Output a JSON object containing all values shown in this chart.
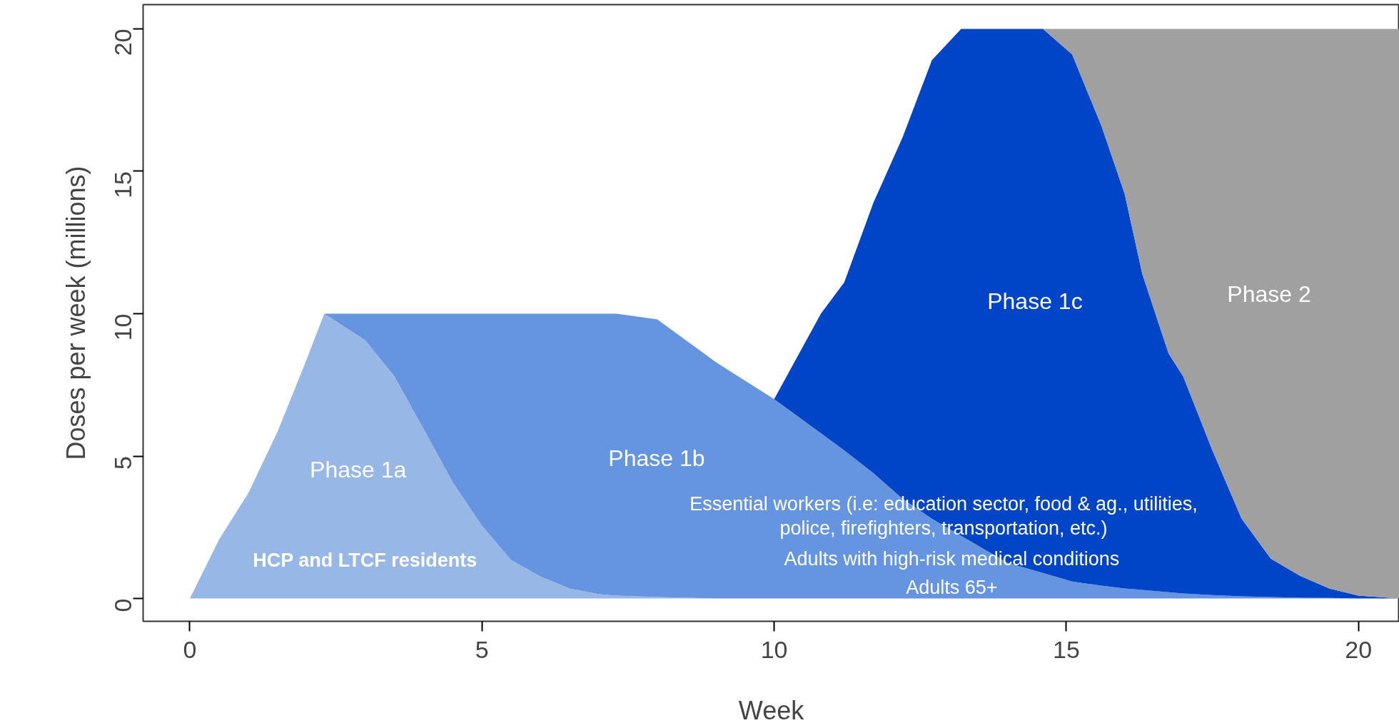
{
  "chart_data": {
    "type": "area",
    "stacked": true,
    "xlabel": "Week",
    "ylabel": "Doses per week (millions)",
    "x": [
      0,
      0.5,
      1,
      1.5,
      2,
      2.3,
      3,
      3.5,
      4,
      4.5,
      5,
      5.5,
      6,
      6.5,
      7,
      7.3,
      8,
      9,
      10,
      10.8,
      11.2,
      11.7,
      12.2,
      12.7,
      13.2,
      14,
      14.6,
      15.1,
      15.6,
      16,
      16.3,
      16.75,
      17,
      17.5,
      18,
      18.5,
      19,
      19.5,
      20,
      20.7
    ],
    "series": [
      {
        "name": "Phase 1a",
        "color": "#97b7e6",
        "values": [
          0,
          2.07,
          3.7,
          5.85,
          8.4,
          10,
          9.07,
          7.8,
          5.95,
          4.08,
          2.55,
          1.35,
          0.77,
          0.35,
          0.15,
          0.1,
          0.05,
          0,
          null,
          null,
          null,
          null,
          null,
          null,
          null,
          null,
          null,
          null,
          null,
          null,
          null,
          null,
          null,
          null,
          null,
          null,
          null,
          null,
          null,
          null
        ]
      },
      {
        "name": "Phase 1b",
        "color": "#6595e0",
        "values": [
          null,
          null,
          null,
          null,
          null,
          0,
          0.93,
          2.2,
          4.05,
          5.92,
          7.45,
          8.65,
          9.23,
          9.65,
          9.85,
          9.9,
          9.75,
          8.3,
          7.0,
          5.8,
          5.2,
          4.4,
          3.5,
          2.8,
          2.2,
          1.25,
          0.9,
          0.6,
          0.45,
          0.35,
          0.3,
          0.22,
          0.18,
          0.12,
          0.08,
          0.05,
          0.03,
          0.02,
          0,
          null
        ]
      },
      {
        "name": "Phase 1c",
        "color": "#0044c8",
        "values": [
          null,
          null,
          null,
          null,
          null,
          null,
          null,
          null,
          null,
          null,
          null,
          null,
          null,
          null,
          null,
          null,
          null,
          null,
          0,
          4.2,
          5.9,
          9.5,
          12.7,
          16.1,
          17.8,
          18.75,
          19.1,
          18.5,
          16.15,
          13.85,
          11.1,
          8.38,
          7.62,
          5.08,
          2.72,
          1.35,
          0.77,
          0.33,
          0.1,
          0
        ]
      },
      {
        "name": "Phase 2",
        "color": "#a0a0a0",
        "values": [
          null,
          null,
          null,
          null,
          null,
          null,
          null,
          null,
          null,
          null,
          null,
          null,
          null,
          null,
          null,
          null,
          null,
          null,
          null,
          null,
          null,
          null,
          null,
          null,
          null,
          null,
          0,
          0.9,
          3.4,
          5.8,
          8.6,
          11.4,
          12.2,
          14.8,
          17.2,
          18.6,
          19.2,
          19.65,
          19.9,
          20
        ]
      }
    ],
    "xlim": [
      -0.8,
      20.7
    ],
    "ylim": [
      -0.8,
      20.85
    ],
    "xticks": [
      0,
      5,
      10,
      15,
      20
    ],
    "yticks": [
      0,
      5,
      10,
      15,
      20
    ],
    "grid": false,
    "annotations": [
      "HCP and LTCF residents",
      "Essential workers (i.e: education sector, food & ag., utilities,\npolice, firefighters, transportation, etc.)",
      "Adults with high-risk medical conditions",
      "Adults 65+"
    ]
  }
}
